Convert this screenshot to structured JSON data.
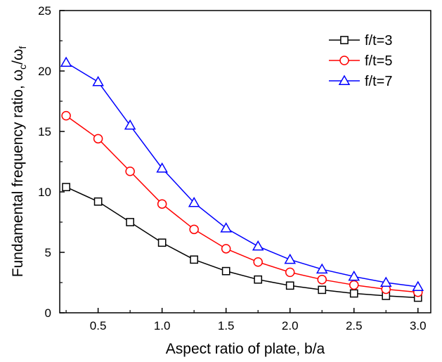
{
  "chart_data": {
    "type": "line",
    "xlabel": "Aspect ratio of plate, b/a",
    "ylabel": {
      "prefix": "Fundamental frequency ratio, ",
      "num_symbol": "ω",
      "num_sub": "c",
      "slash": "/",
      "den_symbol": "ω",
      "den_sub": "f"
    },
    "xlim": [
      0.2,
      3.1
    ],
    "ylim": [
      0,
      25
    ],
    "xticks": [
      0.5,
      1.0,
      1.5,
      2.0,
      2.5,
      3.0
    ],
    "xtick_labels": [
      "0.5",
      "1.0",
      "1.5",
      "2.0",
      "2.5",
      "3.0"
    ],
    "yticks": [
      0,
      5,
      10,
      15,
      20,
      25
    ],
    "ytick_labels": [
      "0",
      "5",
      "10",
      "15",
      "20",
      "25"
    ],
    "grid": false,
    "legend_position": "top-right",
    "x": [
      0.25,
      0.5,
      0.75,
      1.0,
      1.25,
      1.5,
      1.75,
      2.0,
      2.25,
      2.5,
      2.75,
      3.0
    ],
    "series": [
      {
        "name": "f/t=3",
        "color": "#000000",
        "marker": "square",
        "values": [
          10.4,
          9.2,
          7.5,
          5.8,
          4.4,
          3.45,
          2.75,
          2.25,
          1.9,
          1.6,
          1.4,
          1.25
        ]
      },
      {
        "name": "f/t=5",
        "color": "#ff0000",
        "marker": "circle",
        "values": [
          16.3,
          14.4,
          11.7,
          9.0,
          6.9,
          5.3,
          4.2,
          3.35,
          2.75,
          2.3,
          1.95,
          1.7
        ]
      },
      {
        "name": "f/t=7",
        "color": "#0000ff",
        "marker": "triangle",
        "values": [
          20.7,
          19.1,
          15.5,
          11.95,
          9.1,
          7.0,
          5.5,
          4.4,
          3.6,
          3.0,
          2.5,
          2.15
        ]
      }
    ]
  }
}
